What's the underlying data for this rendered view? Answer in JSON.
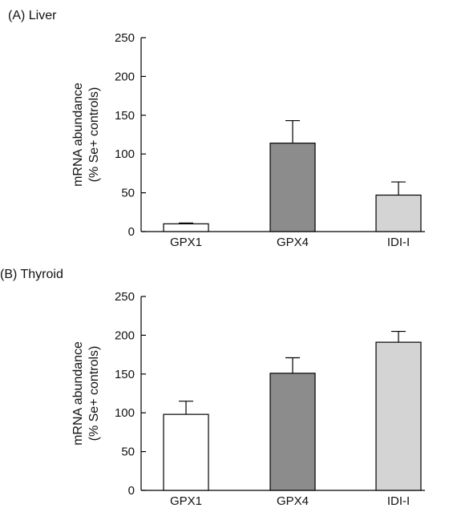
{
  "colors": {
    "background": "#ffffff",
    "axis": "#000000",
    "GPX1": "#ffffff",
    "GPX4": "#8c8c8c",
    "IDI-I": "#d4d4d4",
    "bar_stroke": "#000000"
  },
  "chart_data": [
    {
      "type": "bar",
      "title": "(A) Liver",
      "xlabel": "",
      "ylabel": [
        "mRNA abundance",
        "(% Se+ controls)"
      ],
      "ylim": [
        0,
        250
      ],
      "yticks": [
        0,
        50,
        100,
        150,
        200,
        250
      ],
      "categories": [
        "GPX1",
        "GPX4",
        "IDI-I"
      ],
      "values": [
        10,
        114,
        47
      ],
      "error_upper": [
        1,
        29,
        17
      ],
      "grid": false,
      "legend": "none"
    },
    {
      "type": "bar",
      "title": "(B) Thyroid",
      "xlabel": "",
      "ylabel": [
        "mRNA abundance",
        "(% Se+ controls)"
      ],
      "ylim": [
        0,
        250
      ],
      "yticks": [
        0,
        50,
        100,
        150,
        200,
        250
      ],
      "categories": [
        "GPX1",
        "GPX4",
        "IDI-I"
      ],
      "values": [
        98,
        151,
        191
      ],
      "error_upper": [
        17,
        20,
        14
      ],
      "grid": false,
      "legend": "none"
    }
  ]
}
